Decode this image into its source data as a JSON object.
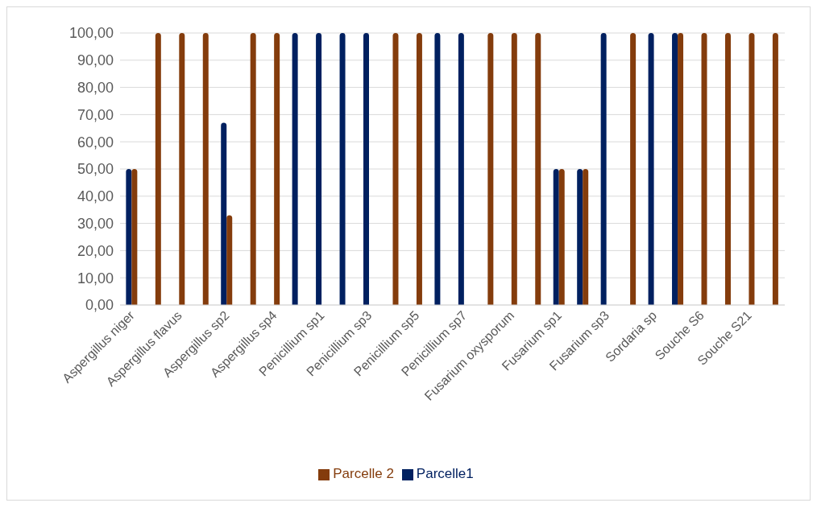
{
  "chart_data": {
    "type": "bar",
    "categories": [
      "Aspergillus niger",
      null,
      "Aspergillus flavus",
      null,
      "Aspergillus sp2",
      null,
      "Aspergillus sp4",
      null,
      "Penicillium sp1",
      null,
      "Penicillium sp3",
      null,
      "Penicillium sp5",
      null,
      "Penicillium sp7",
      null,
      "Fusarium oxysporum",
      null,
      "Fusarium sp1",
      null,
      "Fusarium sp3",
      null,
      "Sordaria sp",
      null,
      "Souche S6",
      null,
      "Souche S21",
      null
    ],
    "series": [
      {
        "name": "Parcelle1",
        "color": "#002060",
        "values": [
          50,
          0,
          0,
          0,
          67,
          0,
          0,
          100,
          100,
          100,
          100,
          0,
          0,
          100,
          100,
          0,
          0,
          0,
          50,
          50,
          100,
          0,
          100,
          100,
          0,
          0,
          0,
          0
        ]
      },
      {
        "name": "Parcelle 2",
        "color": "#843c0c",
        "values": [
          50,
          100,
          100,
          100,
          33,
          100,
          100,
          0,
          0,
          0,
          0,
          100,
          100,
          0,
          0,
          100,
          100,
          100,
          50,
          50,
          0,
          100,
          0,
          100,
          100,
          100,
          100,
          100
        ]
      }
    ],
    "ylim": [
      0,
      100
    ],
    "yticks": [
      {
        "value": 0,
        "label": "0,00"
      },
      {
        "value": 10,
        "label": "10,00"
      },
      {
        "value": 20,
        "label": "20,00"
      },
      {
        "value": 30,
        "label": "30,00"
      },
      {
        "value": 40,
        "label": "40,00"
      },
      {
        "value": 50,
        "label": "50,00"
      },
      {
        "value": 60,
        "label": "60,00"
      },
      {
        "value": 70,
        "label": "70,00"
      },
      {
        "value": 80,
        "label": "80,00"
      },
      {
        "value": 90,
        "label": "90,00"
      },
      {
        "value": 100,
        "label": "100,00"
      }
    ],
    "grid": "y",
    "legend": "bottom"
  }
}
